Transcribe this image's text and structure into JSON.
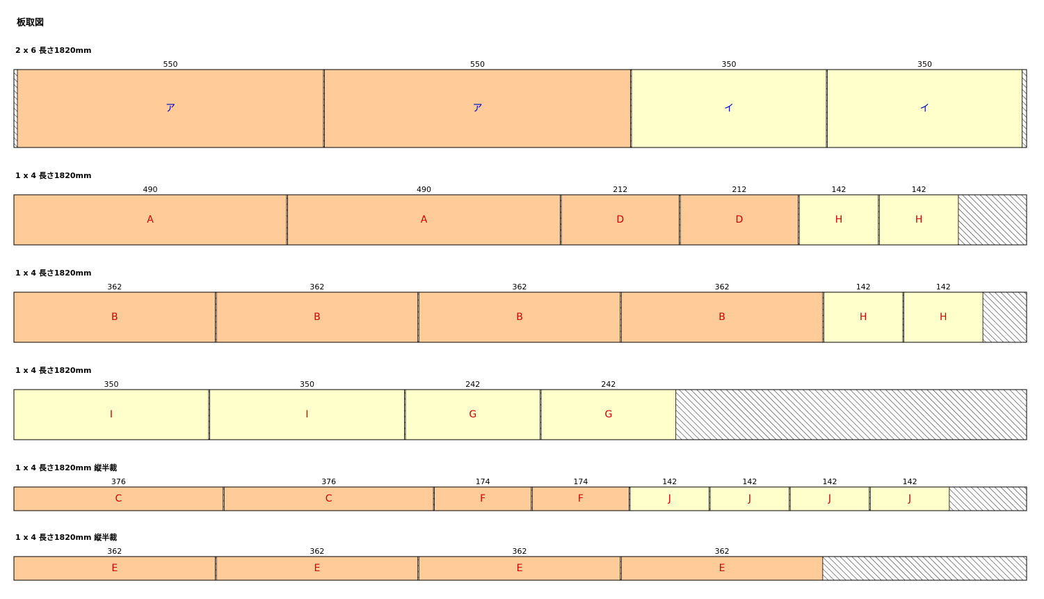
{
  "title": "板取図",
  "boards": [
    {
      "label": "2 x 6 長さ1820mm",
      "label_color": "#0000cc",
      "pieces": [
        {
          "length": 550,
          "label": "ア",
          "color": "#ffcc99"
        },
        {
          "length": 550,
          "label": "ア",
          "color": "#ffcc99"
        },
        {
          "length": 350,
          "label": "イ",
          "color": "#ffffcc"
        },
        {
          "length": 350,
          "label": "イ",
          "color": "#ffffcc"
        }
      ]
    },
    {
      "label": "1 x 4 長さ1820mm",
      "label_color": "#cc0000",
      "pieces": [
        {
          "length": 490,
          "label": "A",
          "color": "#ffcc99"
        },
        {
          "length": 490,
          "label": "A",
          "color": "#ffcc99"
        },
        {
          "length": 212,
          "label": "D",
          "color": "#ffcc99"
        },
        {
          "length": 212,
          "label": "D",
          "color": "#ffcc99"
        },
        {
          "length": 142,
          "label": "H",
          "color": "#ffffcc"
        },
        {
          "length": 142,
          "label": "H",
          "color": "#ffffcc"
        }
      ]
    },
    {
      "label": "1 x 4 長さ1820mm",
      "label_color": "#cc0000",
      "pieces": [
        {
          "length": 362,
          "label": "B",
          "color": "#ffcc99"
        },
        {
          "length": 362,
          "label": "B",
          "color": "#ffcc99"
        },
        {
          "length": 362,
          "label": "B",
          "color": "#ffcc99"
        },
        {
          "length": 362,
          "label": "B",
          "color": "#ffcc99"
        },
        {
          "length": 142,
          "label": "H",
          "color": "#ffffcc"
        },
        {
          "length": 142,
          "label": "H",
          "color": "#ffffcc"
        }
      ]
    },
    {
      "label": "1 x 4 長さ1820mm",
      "label_color": "#cc0000",
      "pieces": [
        {
          "length": 350,
          "label": "I",
          "color": "#ffffcc"
        },
        {
          "length": 350,
          "label": "I",
          "color": "#ffffcc"
        },
        {
          "length": 242,
          "label": "G",
          "color": "#ffffcc"
        },
        {
          "length": 242,
          "label": "G",
          "color": "#ffffcc"
        }
      ]
    },
    {
      "label": "1 x 4 長さ1820mm 縦半裁",
      "label_color": "#cc0000",
      "pieces": [
        {
          "length": 376,
          "label": "C",
          "color": "#ffcc99"
        },
        {
          "length": 376,
          "label": "C",
          "color": "#ffcc99"
        },
        {
          "length": 174,
          "label": "F",
          "color": "#ffcc99"
        },
        {
          "length": 174,
          "label": "F",
          "color": "#ffcc99"
        },
        {
          "length": 142,
          "label": "J",
          "color": "#ffffcc"
        },
        {
          "length": 142,
          "label": "J",
          "color": "#ffffcc"
        },
        {
          "length": 142,
          "label": "J",
          "color": "#ffffcc"
        },
        {
          "length": 142,
          "label": "J",
          "color": "#ffffcc"
        }
      ]
    },
    {
      "label": "1 x 4 長さ1820mm 縦半裁",
      "label_color": "#cc0000",
      "pieces": [
        {
          "length": 362,
          "label": "E",
          "color": "#ffcc99"
        },
        {
          "length": 362,
          "label": "E",
          "color": "#ffcc99"
        },
        {
          "length": 362,
          "label": "E",
          "color": "#ffcc99"
        },
        {
          "length": 362,
          "label": "E",
          "color": "#ffcc99"
        }
      ]
    }
  ]
}
